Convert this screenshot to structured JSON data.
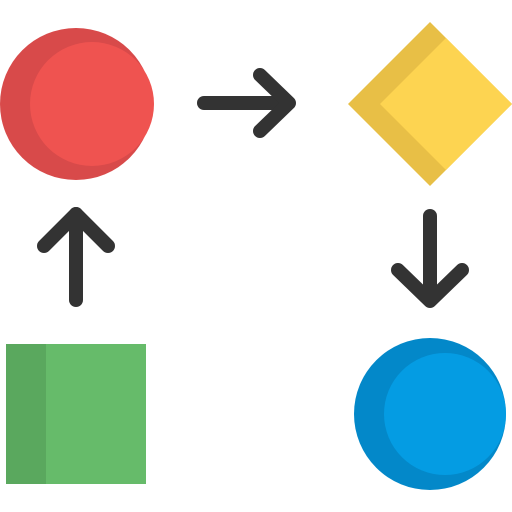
{
  "diagram": {
    "nodes": [
      {
        "id": "start",
        "shape": "circle",
        "icon": "red-circle-icon",
        "color": "#ef5350",
        "shade": "#d84a4a"
      },
      {
        "id": "decision",
        "shape": "diamond",
        "icon": "yellow-diamond-icon",
        "color": "#fdd451",
        "shade": "#e8bf46"
      },
      {
        "id": "end",
        "shape": "circle",
        "icon": "blue-circle-icon",
        "color": "#049ce3",
        "shade": "#0388c9"
      },
      {
        "id": "process",
        "shape": "square",
        "icon": "green-square-icon",
        "color": "#66bb6a",
        "shade": "#5aa85e"
      }
    ],
    "edges": [
      {
        "from": "start",
        "to": "decision",
        "icon": "arrow-right-icon"
      },
      {
        "from": "decision",
        "to": "end",
        "icon": "arrow-down-icon"
      },
      {
        "from": "process",
        "to": "start",
        "icon": "arrow-up-icon"
      }
    ],
    "arrow_color": "#333333"
  }
}
